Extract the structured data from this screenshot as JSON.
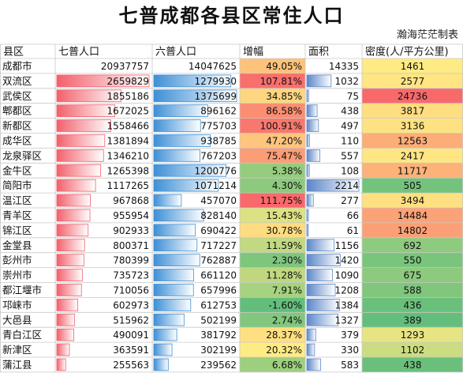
{
  "title": "七普成都各县区常住人口",
  "author": "瀚海茫茫制表",
  "chart_data": {
    "type": "table",
    "columns": [
      "县区",
      "七普人口",
      "六普人口",
      "增幅",
      "面积",
      "密度(人/平方公里)"
    ],
    "rows": [
      {
        "name": "成都市",
        "pop7": 20937757,
        "pop6": 14047625,
        "growth": "49.05%",
        "area": 14335,
        "density": 1461
      },
      {
        "name": "双流区",
        "pop7": 2659829,
        "pop6": 1279930,
        "growth": "107.81%",
        "area": 1032,
        "density": 2577
      },
      {
        "name": "武侯区",
        "pop7": 1855186,
        "pop6": 1375699,
        "growth": "34.85%",
        "area": 75,
        "density": 24736
      },
      {
        "name": "郫都区",
        "pop7": 1672025,
        "pop6": 896162,
        "growth": "86.58%",
        "area": 438,
        "density": 3817
      },
      {
        "name": "新都区",
        "pop7": 1558466,
        "pop6": 775703,
        "growth": "100.91%",
        "area": 497,
        "density": 3136
      },
      {
        "name": "成华区",
        "pop7": 1381894,
        "pop6": 938785,
        "growth": "47.20%",
        "area": 110,
        "density": 12563
      },
      {
        "name": "龙泉驿区",
        "pop7": 1346210,
        "pop6": 767203,
        "growth": "75.47%",
        "area": 557,
        "density": 2417
      },
      {
        "name": "金牛区",
        "pop7": 1265398,
        "pop6": 1200776,
        "growth": "5.38%",
        "area": 108,
        "density": 11717
      },
      {
        "name": "简阳市",
        "pop7": 1117265,
        "pop6": 1071214,
        "growth": "4.30%",
        "area": 2214,
        "density": 505
      },
      {
        "name": "温江区",
        "pop7": 967868,
        "pop6": 457070,
        "growth": "111.75%",
        "area": 277,
        "density": 3494
      },
      {
        "name": "青羊区",
        "pop7": 955954,
        "pop6": 828140,
        "growth": "15.43%",
        "area": 66,
        "density": 14484
      },
      {
        "name": "锦江区",
        "pop7": 902933,
        "pop6": 690422,
        "growth": "30.78%",
        "area": 61,
        "density": 14802
      },
      {
        "name": "金堂县",
        "pop7": 800371,
        "pop6": 717227,
        "growth": "11.59%",
        "area": 1156,
        "density": 692
      },
      {
        "name": "彭州市",
        "pop7": 780399,
        "pop6": 762887,
        "growth": "2.30%",
        "area": 1420,
        "density": 550
      },
      {
        "name": "崇州市",
        "pop7": 735723,
        "pop6": 661120,
        "growth": "11.28%",
        "area": 1090,
        "density": 675
      },
      {
        "name": "都江堰市",
        "pop7": 710056,
        "pop6": 657996,
        "growth": "7.91%",
        "area": 1208,
        "density": 588
      },
      {
        "name": "邛崃市",
        "pop7": 602973,
        "pop6": 612753,
        "growth": "-1.60%",
        "area": 1384,
        "density": 436
      },
      {
        "name": "大邑县",
        "pop7": 515962,
        "pop6": 502199,
        "growth": "2.74%",
        "area": 1327,
        "density": 389
      },
      {
        "name": "青白江区",
        "pop7": 490091,
        "pop6": 381792,
        "growth": "28.37%",
        "area": 379,
        "density": 1293
      },
      {
        "name": "新津区",
        "pop7": 363591,
        "pop6": 302199,
        "growth": "20.32%",
        "area": 330,
        "density": 1102
      },
      {
        "name": "蒲江县",
        "pop7": 255563,
        "pop6": 239562,
        "growth": "6.68%",
        "area": 583,
        "density": 438
      }
    ],
    "colors": {
      "pop7_bar": "#f2606b",
      "pop6_bar": "#3d8fd6",
      "area_bar": "#5b86c9",
      "heat_high": "#f8696b",
      "heat_mid": "#ffeb84",
      "heat_low": "#63be7b",
      "grid": "#c8c8c8"
    }
  }
}
